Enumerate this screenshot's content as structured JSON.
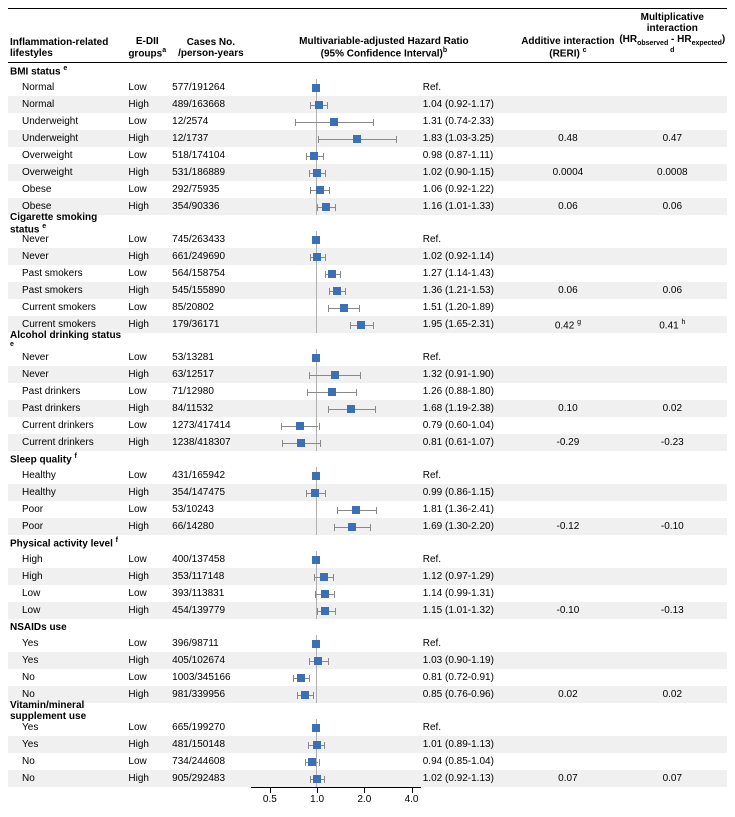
{
  "headers": {
    "lifestyle": "Inflammation-related lifestyles",
    "edii": "E-DII groups",
    "edii_sup": "a",
    "cases": "Cases No. /person-years",
    "hr_title": "Multivariable-adjusted Hazard Ratio",
    "hr_sub": "(95% Confidence Interval)",
    "hr_sup": "b",
    "reri": "Additive interaction (RERI)",
    "reri_sup": "c",
    "mult_a": "Multiplicative interaction",
    "mult_b": "(HR",
    "mult_obs": "observed",
    "mult_dash": " - HR",
    "mult_exp": "expected",
    "mult_c": ")",
    "mult_sup": "d"
  },
  "plot": {
    "log_min": -1.4,
    "log_max": 2.2,
    "ref": 1.0,
    "ticks": [
      0.5,
      1.0,
      2.0,
      4.0
    ],
    "tick_labels": [
      "0.5",
      "1.0",
      "2.0",
      "4.0"
    ],
    "marker_color": "#3b6fb6",
    "ci_color": "#888888",
    "refline_color": "#b0b0b0"
  },
  "sections": [
    {
      "title": "BMI status",
      "sup": "e",
      "rows": [
        {
          "l": "Normal",
          "g": "Low",
          "c": "577/191264",
          "ref": true
        },
        {
          "l": "Normal",
          "g": "High",
          "c": "489/163668",
          "hr": 1.04,
          "lo": 0.92,
          "hi": 1.17,
          "txt": "1.04 (0.92-1.17)"
        },
        {
          "l": "Underweight",
          "g": "Low",
          "c": "12/2574",
          "hr": 1.31,
          "lo": 0.74,
          "hi": 2.33,
          "txt": "1.31 (0.74-2.33)"
        },
        {
          "l": "Underweight",
          "g": "High",
          "c": "12/1737",
          "hr": 1.83,
          "lo": 1.03,
          "hi": 3.25,
          "txt": "1.83 (1.03-3.25)",
          "reri": "0.48",
          "mult": "0.47"
        },
        {
          "l": "Overweight",
          "g": "Low",
          "c": "518/174104",
          "hr": 0.98,
          "lo": 0.87,
          "hi": 1.11,
          "txt": "0.98 (0.87-1.11)"
        },
        {
          "l": "Overweight",
          "g": "High",
          "c": "531/186889",
          "hr": 1.02,
          "lo": 0.9,
          "hi": 1.15,
          "txt": "1.02 (0.90-1.15)",
          "reri": "0.0004",
          "mult": "0.0008"
        },
        {
          "l": "Obese",
          "g": "Low",
          "c": "292/75935",
          "hr": 1.06,
          "lo": 0.92,
          "hi": 1.22,
          "txt": "1.06 (0.92-1.22)"
        },
        {
          "l": "Obese",
          "g": "High",
          "c": "354/90336",
          "hr": 1.16,
          "lo": 1.01,
          "hi": 1.33,
          "txt": "1.16 (1.01-1.33)",
          "reri": "0.06",
          "mult": "0.06"
        }
      ]
    },
    {
      "title": "Cigarette smoking status",
      "sup": "e",
      "rows": [
        {
          "l": "Never",
          "g": "Low",
          "c": "745/263433",
          "ref": true
        },
        {
          "l": "Never",
          "g": "High",
          "c": "661/249690",
          "hr": 1.02,
          "lo": 0.92,
          "hi": 1.14,
          "txt": "1.02 (0.92-1.14)"
        },
        {
          "l": "Past smokers",
          "g": "Low",
          "c": "564/158754",
          "hr": 1.27,
          "lo": 1.14,
          "hi": 1.43,
          "txt": "1.27 (1.14-1.43)"
        },
        {
          "l": "Past smokers",
          "g": "High",
          "c": "545/155890",
          "hr": 1.36,
          "lo": 1.21,
          "hi": 1.53,
          "txt": "1.36 (1.21-1.53)",
          "reri": "0.06",
          "mult": "0.06"
        },
        {
          "l": "Current smokers",
          "g": "Low",
          "c": "85/20802",
          "hr": 1.51,
          "lo": 1.2,
          "hi": 1.89,
          "txt": "1.51 (1.20-1.89)"
        },
        {
          "l": "Current smokers",
          "g": "High",
          "c": "179/36171",
          "hr": 1.95,
          "lo": 1.65,
          "hi": 2.31,
          "txt": "1.95 (1.65-2.31)",
          "reri": "0.42",
          "reri_sup": "g",
          "mult": "0.41",
          "mult_sup2": "h"
        }
      ]
    },
    {
      "title": "Alcohol drinking status",
      "sup": "e",
      "rows": [
        {
          "l": "Never",
          "g": "Low",
          "c": "53/13281",
          "ref": true
        },
        {
          "l": "Never",
          "g": "High",
          "c": "63/12517",
          "hr": 1.32,
          "lo": 0.91,
          "hi": 1.9,
          "txt": "1.32 (0.91-1.90)"
        },
        {
          "l": "Past drinkers",
          "g": "Low",
          "c": "71/12980",
          "hr": 1.26,
          "lo": 0.88,
          "hi": 1.8,
          "txt": "1.26 (0.88-1.80)"
        },
        {
          "l": "Past drinkers",
          "g": "High",
          "c": "84/11532",
          "hr": 1.68,
          "lo": 1.19,
          "hi": 2.38,
          "txt": "1.68 (1.19-2.38)",
          "reri": "0.10",
          "mult": "0.02"
        },
        {
          "l": "Current drinkers",
          "g": "Low",
          "c": "1273/417414",
          "hr": 0.79,
          "lo": 0.6,
          "hi": 1.04,
          "txt": "0.79 (0.60-1.04)"
        },
        {
          "l": "Current drinkers",
          "g": "High",
          "c": "1238/418307",
          "hr": 0.81,
          "lo": 0.61,
          "hi": 1.07,
          "txt": "0.81 (0.61-1.07)",
          "reri": "-0.29",
          "mult": "-0.23"
        }
      ]
    },
    {
      "title": "Sleep quality",
      "sup": "f",
      "rows": [
        {
          "l": "Healthy",
          "g": "Low",
          "c": "431/165942",
          "ref": true
        },
        {
          "l": "Healthy",
          "g": "High",
          "c": "354/147475",
          "hr": 0.99,
          "lo": 0.86,
          "hi": 1.15,
          "txt": "0.99 (0.86-1.15)"
        },
        {
          "l": "Poor",
          "g": "Low",
          "c": "53/10243",
          "hr": 1.81,
          "lo": 1.36,
          "hi": 2.41,
          "txt": "1.81 (1.36-2.41)"
        },
        {
          "l": "Poor",
          "g": "High",
          "c": "66/14280",
          "hr": 1.69,
          "lo": 1.3,
          "hi": 2.2,
          "txt": "1.69 (1.30-2.20)",
          "reri": "-0.12",
          "mult": "-0.10"
        }
      ]
    },
    {
      "title": "Physical activity level",
      "sup": "f",
      "rows": [
        {
          "l": "High",
          "g": "Low",
          "c": "400/137458",
          "ref": true
        },
        {
          "l": "High",
          "g": "High",
          "c": "353/117148",
          "hr": 1.12,
          "lo": 0.97,
          "hi": 1.29,
          "txt": "1.12 (0.97-1.29)"
        },
        {
          "l": "Low",
          "g": "Low",
          "c": "393/113831",
          "hr": 1.14,
          "lo": 0.99,
          "hi": 1.31,
          "txt": "1.14 (0.99-1.31)"
        },
        {
          "l": "Low",
          "g": "High",
          "c": "454/139779",
          "hr": 1.15,
          "lo": 1.01,
          "hi": 1.32,
          "txt": "1.15 (1.01-1.32)",
          "reri": "-0.10",
          "mult": "-0.13"
        }
      ]
    },
    {
      "title": "NSAIDs use",
      "sup": "",
      "rows": [
        {
          "l": "Yes",
          "g": "Low",
          "c": "396/98711",
          "ref": true
        },
        {
          "l": "Yes",
          "g": "High",
          "c": "405/102674",
          "hr": 1.03,
          "lo": 0.9,
          "hi": 1.19,
          "txt": "1.03 (0.90-1.19)"
        },
        {
          "l": "No",
          "g": "Low",
          "c": "1003/345166",
          "hr": 0.81,
          "lo": 0.72,
          "hi": 0.91,
          "txt": "0.81 (0.72-0.91)"
        },
        {
          "l": "No",
          "g": "High",
          "c": "981/339956",
          "hr": 0.85,
          "lo": 0.76,
          "hi": 0.96,
          "txt": "0.85 (0.76-0.96)",
          "reri": "0.02",
          "mult": "0.02"
        }
      ]
    },
    {
      "title": "Vitamin/mineral supplement use",
      "sup": "",
      "rows": [
        {
          "l": "Yes",
          "g": "Low",
          "c": "665/199270",
          "ref": true
        },
        {
          "l": "Yes",
          "g": "High",
          "c": "481/150148",
          "hr": 1.01,
          "lo": 0.89,
          "hi": 1.13,
          "txt": "1.01 (0.89-1.13)"
        },
        {
          "l": "No",
          "g": "Low",
          "c": "734/244608",
          "hr": 0.94,
          "lo": 0.85,
          "hi": 1.04,
          "txt": "0.94 (0.85-1.04)"
        },
        {
          "l": "No",
          "g": "High",
          "c": "905/292483",
          "hr": 1.02,
          "lo": 0.92,
          "hi": 1.13,
          "txt": "1.02 (0.92-1.13)",
          "reri": "0.07",
          "mult": "0.07"
        }
      ]
    }
  ],
  "ref_label": "Ref."
}
